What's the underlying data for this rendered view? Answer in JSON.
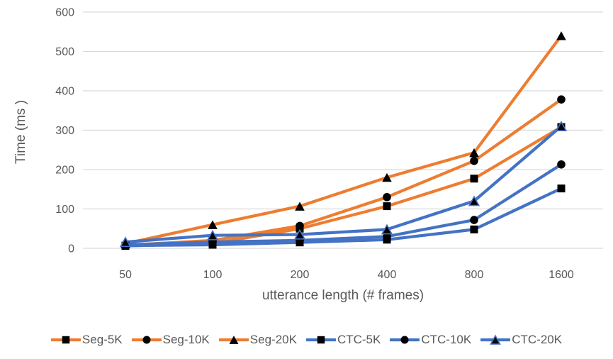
{
  "chart_data": {
    "type": "line",
    "title": "",
    "xlabel": "utterance length (# frames)",
    "ylabel": "Time (ms )",
    "categories": [
      "50",
      "100",
      "200",
      "400",
      "800",
      "1600"
    ],
    "y_ticks": [
      0,
      100,
      200,
      300,
      400,
      500,
      600
    ],
    "ylim": [
      0,
      600
    ],
    "grid": "horizontal",
    "legend_position": "bottom",
    "colors": {
      "seg_orange": "#ED7D31",
      "ctc_blue": "#4472C4",
      "marker_black": "#000000",
      "gridline": "#D9D9D9",
      "axis_text": "#595959"
    },
    "series": [
      {
        "name": "Seg-5K",
        "color": "#ED7D31",
        "marker": "square",
        "values": [
          6,
          12,
          50,
          107,
          177,
          308
        ]
      },
      {
        "name": "Seg-10K",
        "color": "#ED7D31",
        "marker": "circle",
        "values": [
          8,
          20,
          57,
          130,
          222,
          378
        ]
      },
      {
        "name": "Seg-20K",
        "color": "#ED7D31",
        "marker": "triangle",
        "values": [
          12,
          60,
          107,
          180,
          243,
          540
        ]
      },
      {
        "name": "CTC-5K",
        "color": "#4472C4",
        "marker": "square",
        "values": [
          7,
          9,
          15,
          22,
          48,
          152
        ]
      },
      {
        "name": "CTC-10K",
        "color": "#4472C4",
        "marker": "circle",
        "values": [
          9,
          16,
          20,
          30,
          72,
          213
        ]
      },
      {
        "name": "CTC-20K",
        "color": "#4472C4",
        "marker": "triangle",
        "marker_stroke": "#4472C4",
        "values": [
          16,
          33,
          35,
          48,
          120,
          310
        ]
      }
    ]
  }
}
